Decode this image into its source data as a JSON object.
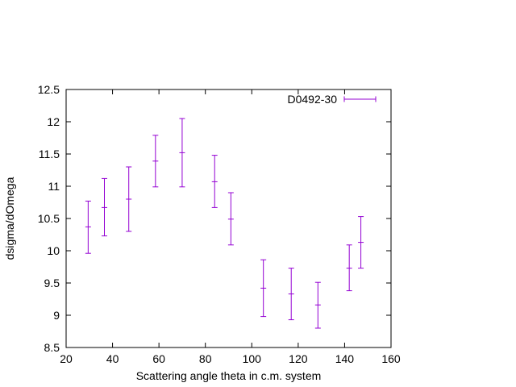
{
  "chart_data": {
    "type": "scatter",
    "title": "",
    "xlabel": "Scattering angle theta in c.m. system",
    "ylabel": "dsigma/dOmega",
    "xlim": [
      20,
      160
    ],
    "ylim": [
      8.5,
      12.5
    ],
    "xticks": [
      20,
      40,
      60,
      80,
      100,
      120,
      140,
      160
    ],
    "yticks": [
      8.5,
      9,
      9.5,
      10,
      10.5,
      11,
      11.5,
      12,
      12.5
    ],
    "xtick_labels": [
      "20",
      "40",
      "60",
      "80",
      "100",
      "120",
      "140",
      "160"
    ],
    "ytick_labels": [
      "8.5",
      "9",
      "9.5",
      "10",
      "10.5",
      "11",
      "11.5",
      "12",
      "12.5"
    ],
    "grid": false,
    "legend_position": "top-right",
    "series": [
      {
        "name": "D0492-30",
        "color": "#9400D3",
        "style": "yerrorbars",
        "points": [
          {
            "x": 29.5,
            "y": 10.37,
            "ylow": 9.96,
            "yhigh": 10.77
          },
          {
            "x": 36.5,
            "y": 10.67,
            "ylow": 10.23,
            "yhigh": 11.12
          },
          {
            "x": 47.0,
            "y": 10.8,
            "ylow": 10.3,
            "yhigh": 11.3
          },
          {
            "x": 58.5,
            "y": 11.39,
            "ylow": 10.99,
            "yhigh": 11.79
          },
          {
            "x": 70.0,
            "y": 11.52,
            "ylow": 10.99,
            "yhigh": 12.05
          },
          {
            "x": 84.0,
            "y": 11.07,
            "ylow": 10.67,
            "yhigh": 11.48
          },
          {
            "x": 91.0,
            "y": 10.49,
            "ylow": 10.09,
            "yhigh": 10.9
          },
          {
            "x": 105.0,
            "y": 9.42,
            "ylow": 8.98,
            "yhigh": 9.86
          },
          {
            "x": 117.0,
            "y": 9.33,
            "ylow": 8.93,
            "yhigh": 9.73
          },
          {
            "x": 128.5,
            "y": 9.16,
            "ylow": 8.8,
            "yhigh": 9.51
          },
          {
            "x": 142.0,
            "y": 9.73,
            "ylow": 9.38,
            "yhigh": 10.09
          },
          {
            "x": 147.0,
            "y": 10.13,
            "ylow": 9.73,
            "yhigh": 10.53
          }
        ]
      }
    ]
  }
}
